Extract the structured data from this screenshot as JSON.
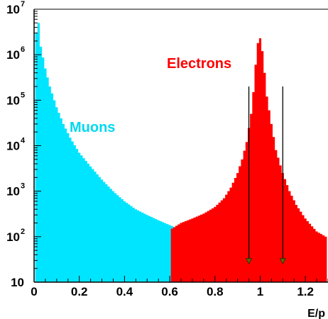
{
  "chart_data": {
    "type": "histogram",
    "xlabel": "E/p",
    "ylabel": "",
    "xlim": [
      0,
      1.3
    ],
    "ylim": [
      10,
      10000000
    ],
    "y_scale": "log",
    "grid": false,
    "x_ticks": [
      "0",
      "0.2",
      "0.4",
      "0.6",
      "0.8",
      "1",
      "1.2"
    ],
    "y_ticks": [
      {
        "base": "10",
        "exp": ""
      },
      {
        "base": "10",
        "exp": "2"
      },
      {
        "base": "10",
        "exp": "3"
      },
      {
        "base": "10",
        "exp": "4"
      },
      {
        "base": "10",
        "exp": "5"
      },
      {
        "base": "10",
        "exp": "6"
      },
      {
        "base": "10",
        "exp": "7"
      }
    ],
    "series": [
      {
        "name": "Muons",
        "color": "#00e5ff",
        "label_color": "#00d8f0",
        "points": [
          [
            0.01,
            3000000
          ],
          [
            0.02,
            5000000
          ],
          [
            0.03,
            1500000
          ],
          [
            0.05,
            500000
          ],
          [
            0.07,
            200000
          ],
          [
            0.1,
            70000
          ],
          [
            0.13,
            30000
          ],
          [
            0.16,
            15000
          ],
          [
            0.2,
            7000
          ],
          [
            0.25,
            3500
          ],
          [
            0.3,
            1800
          ],
          [
            0.35,
            1000
          ],
          [
            0.4,
            600
          ],
          [
            0.45,
            400
          ],
          [
            0.5,
            300
          ],
          [
            0.55,
            230
          ],
          [
            0.6,
            180
          ],
          [
            0.65,
            140
          ],
          [
            0.7,
            100
          ],
          [
            0.75,
            70
          ],
          [
            0.8,
            50
          ],
          [
            0.85,
            40
          ],
          [
            0.9,
            32
          ],
          [
            0.93,
            25
          ],
          [
            0.96,
            18
          ],
          [
            0.98,
            13
          ],
          [
            0.99,
            10
          ]
        ]
      },
      {
        "name": "Electrons",
        "color": "#ff0000",
        "label_color": "#ff0000",
        "points": [
          [
            0.61,
            150
          ],
          [
            0.65,
            200
          ],
          [
            0.7,
            250
          ],
          [
            0.75,
            320
          ],
          [
            0.8,
            450
          ],
          [
            0.84,
            700
          ],
          [
            0.87,
            1200
          ],
          [
            0.9,
            2500
          ],
          [
            0.92,
            5000
          ],
          [
            0.94,
            12000
          ],
          [
            0.96,
            50000
          ],
          [
            0.97,
            150000
          ],
          [
            0.98,
            600000
          ],
          [
            0.99,
            1800000
          ],
          [
            1.0,
            2300000
          ],
          [
            1.01,
            1200000
          ],
          [
            1.02,
            400000
          ],
          [
            1.03,
            120000
          ],
          [
            1.05,
            30000
          ],
          [
            1.07,
            8000
          ],
          [
            1.1,
            2500
          ],
          [
            1.13,
            1000
          ],
          [
            1.16,
            500
          ],
          [
            1.2,
            250
          ],
          [
            1.25,
            130
          ],
          [
            1.29,
            100
          ]
        ]
      }
    ],
    "annotations": [
      {
        "type": "arrow",
        "x": 0.95,
        "y_from": 200000,
        "y_to": 25,
        "color": "#556b00"
      },
      {
        "type": "arrow",
        "x": 1.1,
        "y_from": 200000,
        "y_to": 25,
        "color": "#556b00"
      }
    ]
  }
}
